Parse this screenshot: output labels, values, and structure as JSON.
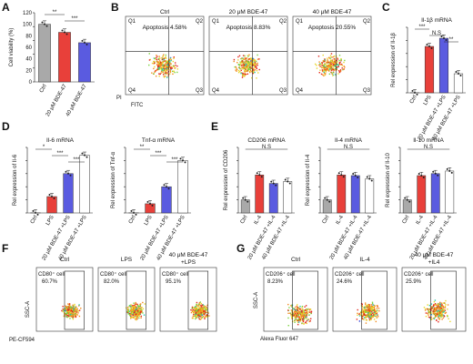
{
  "panels": {
    "A": {
      "label": "A",
      "chart_data": {
        "type": "bar",
        "ylabel": "Cell viability (%)",
        "categories": [
          "Ctrl",
          "20 μM BDE-47",
          "40 μM BDE-47"
        ],
        "values": [
          100,
          86,
          68
        ],
        "colors": [
          "#a9a9a9",
          "#e8403a",
          "#5a5be0"
        ],
        "yticks": [
          "0",
          "20",
          "40",
          "60",
          "80",
          "100",
          "120"
        ],
        "ylim": [
          0,
          120
        ],
        "significance": [
          "**",
          "***"
        ]
      }
    },
    "B": {
      "label": "B",
      "titles": [
        "Ctrl",
        "20 μM BDE-47",
        "40 μM BDE-47"
      ],
      "apoptosis": [
        "Apoptosis 4.58%",
        "Apoptosis 8.83%",
        "Apoptosis 20.55%"
      ],
      "quadrants": [
        "Q1",
        "Q2",
        "Q3",
        "Q4"
      ],
      "xlabel": "FITC",
      "ylabel": "PI"
    },
    "C": {
      "label": "C",
      "chart_data": {
        "type": "bar",
        "title": "Il-1β mRNA",
        "ylabel": "Rel expression of Il-1β",
        "categories": [
          "Ctrl",
          "LPS",
          "20 μM BDE-47 +LPS",
          "40 μM BDE-47 +LPS"
        ],
        "values": [
          0.2,
          85,
          100,
          35
        ],
        "colors": [
          "#a9a9a9",
          "#e8403a",
          "#5a5be0",
          "#ffffff"
        ],
        "ylim": [
          0,
          120
        ],
        "significance": [
          "***",
          "N.S",
          "**"
        ]
      }
    },
    "D": {
      "label": "D",
      "charts": [
        {
          "type": "bar",
          "title": "Il-6 mRNA",
          "ylabel": "Rel expression of Il-6",
          "categories": [
            "Ctrl",
            "LPS",
            "20 μM BDE-47 +LPS",
            "40 μM BDE-47 +LPS"
          ],
          "values": [
            0.2,
            25,
            60,
            88
          ],
          "colors": [
            "#a9a9a9",
            "#e8403a",
            "#5a5be0",
            "#ffffff"
          ],
          "ylim": [
            0,
            100
          ],
          "significance": [
            "*",
            "***",
            "***"
          ]
        },
        {
          "type": "bar",
          "title": "Tnf-α mRNA",
          "ylabel": "Rel expression of Tnf-α",
          "categories": [
            "Ctrl",
            "LPS",
            "20 μM BDE-47 +LPS",
            "40 μM BDE-47 +LPS"
          ],
          "values": [
            0.2,
            14,
            40,
            80
          ],
          "colors": [
            "#a9a9a9",
            "#e8403a",
            "#5a5be0",
            "#ffffff"
          ],
          "ylim": [
            0,
            100
          ],
          "significance": [
            "**",
            "***",
            "***"
          ]
        }
      ]
    },
    "E": {
      "label": "E",
      "charts": [
        {
          "type": "bar",
          "title": "CD206 mRNA",
          "ylabel": "Rel expression of CD206",
          "categories": [
            "Ctrl",
            "IL-4",
            "20 μM BDE-47 +IL-4",
            "40 μM BDE-47 +IL-4"
          ],
          "values": [
            20,
            58,
            45,
            48
          ],
          "colors": [
            "#a9a9a9",
            "#e8403a",
            "#5a5be0",
            "#ffffff"
          ],
          "ylim": [
            0,
            100
          ],
          "significance": [
            "N.S"
          ]
        },
        {
          "type": "bar",
          "title": "Il-4 mRNA",
          "ylabel": "Rel expression of Il-4",
          "categories": [
            "Ctrl",
            "IL-4",
            "20 μM BDE-47 +IL-4",
            "40 μM BDE-47 +IL-4"
          ],
          "values": [
            20,
            58,
            57,
            52
          ],
          "colors": [
            "#a9a9a9",
            "#e8403a",
            "#5a5be0",
            "#ffffff"
          ],
          "ylim": [
            0,
            100
          ],
          "significance": [
            "N.S"
          ]
        },
        {
          "type": "bar",
          "title": "Il-10 mRNA",
          "ylabel": "Rel expression of Il-10",
          "categories": [
            "Ctrl",
            "IL-4",
            "20 μM BDE-47 +IL-4",
            "40 μM BDE-47 +IL-4"
          ],
          "values": [
            20,
            57,
            60,
            64
          ],
          "colors": [
            "#a9a9a9",
            "#e8403a",
            "#5a5be0",
            "#ffffff"
          ],
          "ylim": [
            0,
            100
          ],
          "significance": [
            "N.S"
          ]
        }
      ]
    },
    "F": {
      "label": "F",
      "titles": [
        "Ctrl",
        "LPS",
        "40 μM BDE-47",
        "+LPS"
      ],
      "gates": [
        "CD80⁺ cell",
        "CD80⁺ cell",
        "CD80⁺ cell"
      ],
      "values": [
        "60.7%",
        "82.0%",
        "95.1%"
      ],
      "xlabel": "PE-CF594",
      "ylabel": "SSC-A"
    },
    "G": {
      "label": "G",
      "titles": [
        "Ctrl",
        "IL-4",
        "40 μM BDE-47",
        "+IL4"
      ],
      "gates": [
        "CD206⁺ cell",
        "CD206⁺ cell",
        "CD206⁺ cell"
      ],
      "values": [
        "8.23%",
        "24.6%",
        "25.9%"
      ],
      "xlabel": "Alexa Fluor 647",
      "ylabel": "SSC-A"
    }
  }
}
